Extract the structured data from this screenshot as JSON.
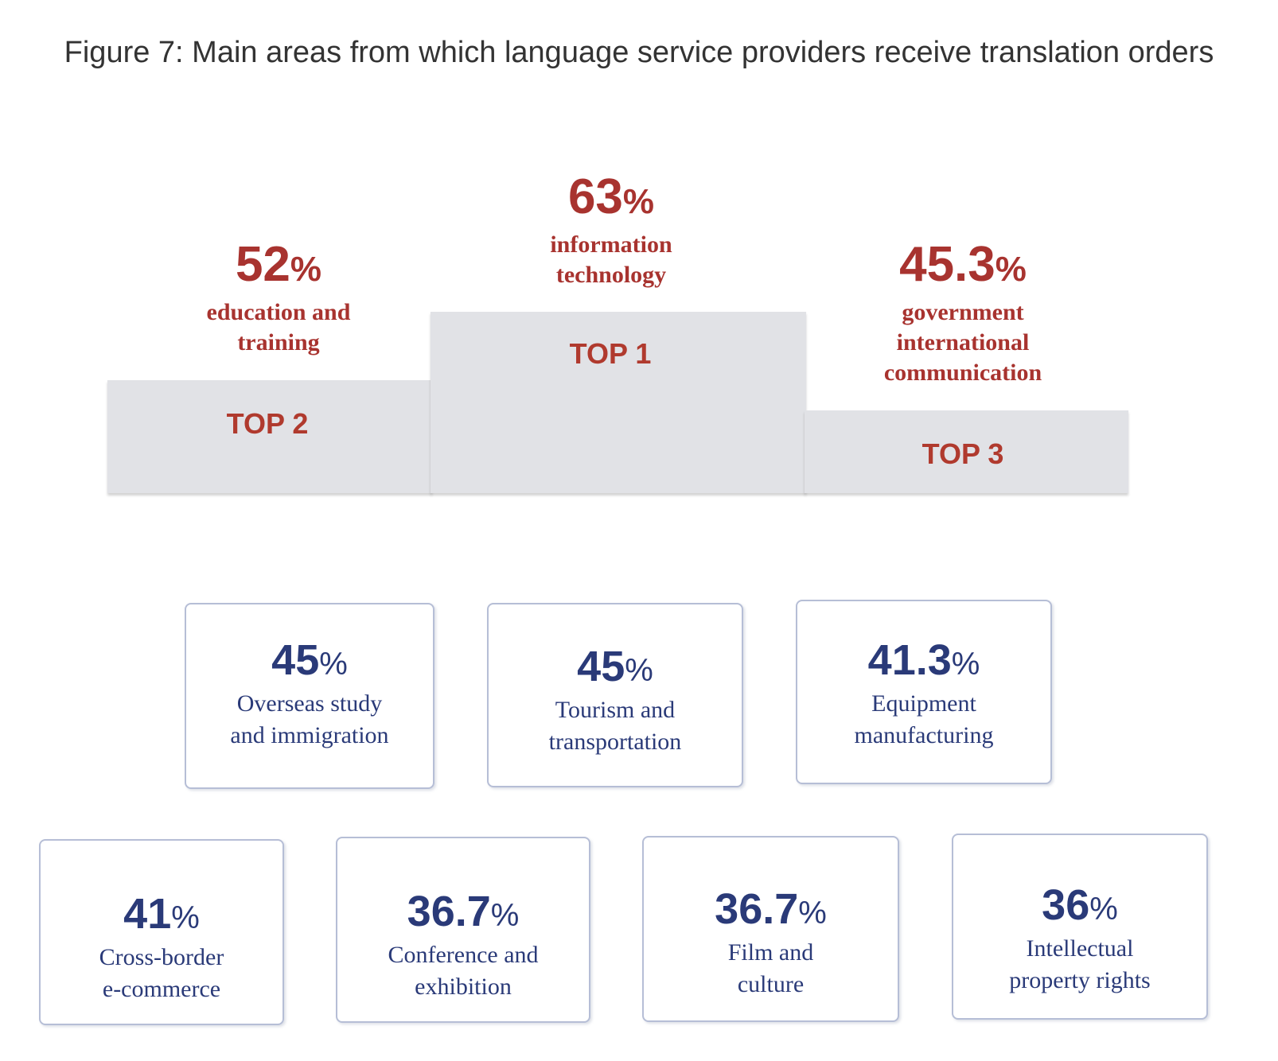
{
  "title": "Figure 7: Main areas from which language service providers receive translation orders",
  "colors": {
    "top_text": "#a8332f",
    "card_text": "#2a3a78",
    "podium": "#e1e2e6",
    "card_border": "#b6bed6"
  },
  "chart_data": {
    "type": "infographic",
    "unit": "%",
    "podium": [
      {
        "rank_label": "TOP 1",
        "value": 63,
        "value_text": "63",
        "category": "information technology"
      },
      {
        "rank_label": "TOP 2",
        "value": 52,
        "value_text": "52",
        "category": "education and training"
      },
      {
        "rank_label": "TOP 3",
        "value": 45.3,
        "value_text": "45.3",
        "category": "government international communication"
      }
    ],
    "cards": [
      {
        "value": 45,
        "value_text": "45",
        "category": "Overseas study and immigration"
      },
      {
        "value": 45,
        "value_text": "45",
        "category": "Tourism and transportation"
      },
      {
        "value": 41.3,
        "value_text": "41.3",
        "category": "Equipment manufacturing"
      },
      {
        "value": 41,
        "value_text": "41",
        "category": "Cross-border e-commerce"
      },
      {
        "value": 36.7,
        "value_text": "36.7",
        "category": "Conference and exhibition"
      },
      {
        "value": 36.7,
        "value_text": "36.7",
        "category": "Film and culture"
      },
      {
        "value": 36,
        "value_text": "36",
        "category": "Intellectual property rights"
      }
    ]
  }
}
